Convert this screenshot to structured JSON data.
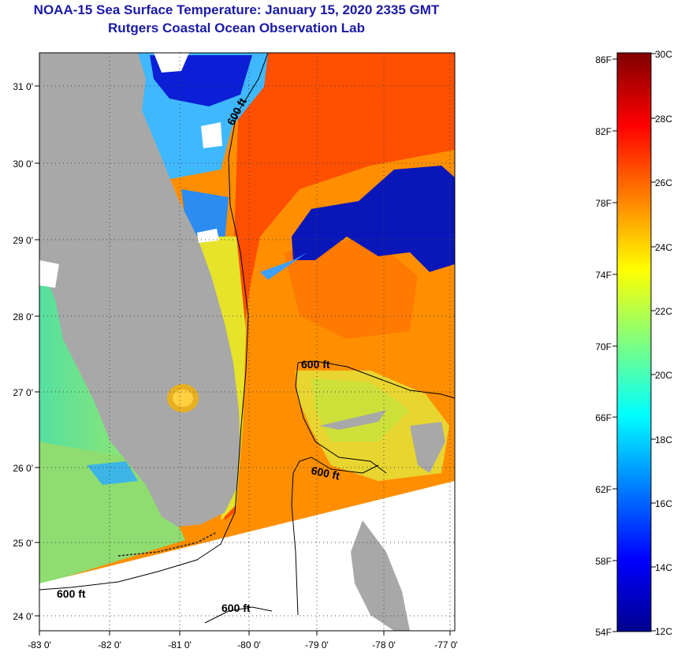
{
  "header": {
    "title": "NOAA-15 Sea Surface Temperature:  January 15, 2020 2335 GMT",
    "subtitle": "Rutgers Coastal Ocean Observation Lab"
  },
  "map": {
    "lat_labels": [
      "31 0'",
      "30 0'",
      "29 0'",
      "28 0'",
      "27 0'",
      "26 0'",
      "25 0'",
      "24 0'"
    ],
    "lon_labels": [
      "-83 0'",
      "-82 0'",
      "-81 0'",
      "-80 0'",
      "-79 0'",
      "-78 0'",
      "-77 0'"
    ],
    "contour_labels": [
      "600 ft",
      "600 ft",
      "600 ft",
      "600 ft",
      "600 ft"
    ]
  },
  "colorbar": {
    "fahrenheit_labels": [
      "86F",
      "82F",
      "78F",
      "74F",
      "70F",
      "66F",
      "62F",
      "58F",
      "54F"
    ],
    "celsius_labels": [
      "30C",
      "28C",
      "26C",
      "24C",
      "22C",
      "20C",
      "18C",
      "16C",
      "14C",
      "12C"
    ]
  },
  "colors": {
    "land": "#a8a8a8",
    "no_data": "#ffffff",
    "title": "#1a1aa6"
  }
}
